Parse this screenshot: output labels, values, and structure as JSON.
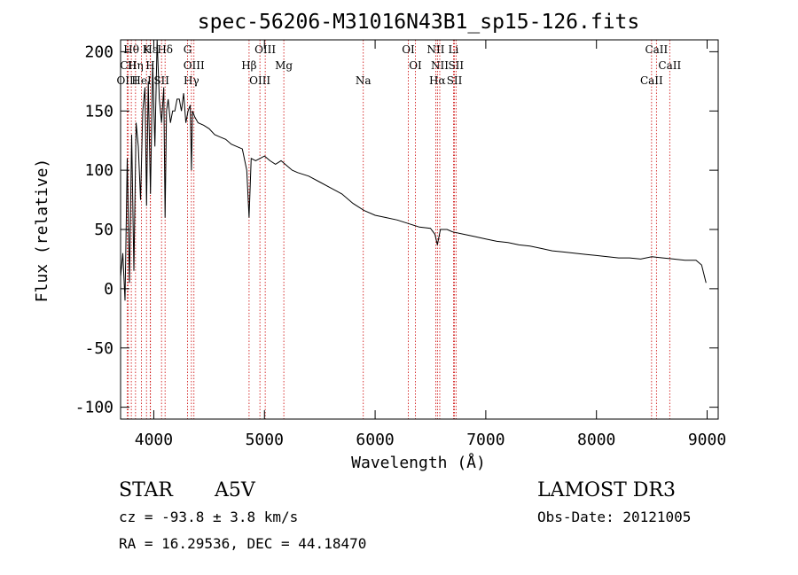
{
  "chart_data": {
    "type": "line",
    "title": "spec-56206-M31016N43B1_sp15-126.fits",
    "xlabel": "Wavelength (Å)",
    "ylabel": "Flux (relative)",
    "xlim": [
      3700,
      9100
    ],
    "ylim": [
      -110,
      210
    ],
    "xticks": [
      4000,
      5000,
      6000,
      7000,
      8000,
      9000
    ],
    "yticks": [
      -100,
      -50,
      0,
      50,
      100,
      150,
      200
    ],
    "series": [
      {
        "name": "spectrum",
        "x": [
          3700,
          3720,
          3740,
          3760,
          3780,
          3800,
          3820,
          3840,
          3860,
          3880,
          3900,
          3920,
          3935,
          3950,
          3970,
          3990,
          4010,
          4030,
          4050,
          4070,
          4090,
          4102,
          4115,
          4130,
          4150,
          4170,
          4190,
          4210,
          4230,
          4250,
          4270,
          4290,
          4310,
          4330,
          4340,
          4350,
          4370,
          4400,
          4450,
          4500,
          4550,
          4600,
          4650,
          4700,
          4750,
          4800,
          4840,
          4861,
          4880,
          4920,
          4960,
          5000,
          5050,
          5100,
          5150,
          5200,
          5250,
          5300,
          5400,
          5500,
          5600,
          5700,
          5800,
          5900,
          6000,
          6100,
          6200,
          6300,
          6400,
          6500,
          6540,
          6563,
          6590,
          6650,
          6700,
          6800,
          6900,
          7000,
          7100,
          7200,
          7300,
          7400,
          7500,
          7600,
          7700,
          7800,
          7900,
          8000,
          8100,
          8200,
          8300,
          8400,
          8500,
          8600,
          8700,
          8800,
          8900,
          8950,
          8990
        ],
        "values": [
          10,
          30,
          -10,
          110,
          5,
          130,
          15,
          140,
          120,
          75,
          150,
          170,
          70,
          175,
          80,
          190,
          120,
          210,
          160,
          140,
          170,
          60,
          150,
          160,
          140,
          150,
          150,
          160,
          160,
          150,
          165,
          140,
          150,
          155,
          100,
          150,
          145,
          140,
          138,
          135,
          130,
          128,
          126,
          122,
          120,
          118,
          100,
          60,
          110,
          108,
          110,
          112,
          108,
          105,
          108,
          104,
          100,
          98,
          95,
          90,
          85,
          80,
          72,
          66,
          62,
          60,
          58,
          55,
          52,
          51,
          46,
          37,
          50,
          50,
          48,
          46,
          44,
          42,
          40,
          39,
          37,
          36,
          34,
          32,
          31,
          30,
          29,
          28,
          27,
          26,
          26,
          25,
          27,
          26,
          25,
          24,
          24,
          20,
          5
        ]
      }
    ],
    "lines": [
      {
        "label": "Hθ",
        "x": 3797
      },
      {
        "label": "CII",
        "x": 3770
      },
      {
        "label": "OIII",
        "x": 3760
      },
      {
        "label": "K",
        "x": 3934
      },
      {
        "label": "H",
        "x": 3968
      },
      {
        "label": "HeI",
        "x": 3889
      },
      {
        "label": "Hε",
        "x": 3970
      },
      {
        "label": "Hη",
        "x": 3835
      },
      {
        "label": "SII",
        "x": 4070
      },
      {
        "label": "Hδ",
        "x": 4102
      },
      {
        "label": "OIII",
        "x": 4363
      },
      {
        "label": "Hγ",
        "x": 4340
      },
      {
        "label": "G",
        "x": 4305
      },
      {
        "label": "Hβ",
        "x": 4861
      },
      {
        "label": "OIII",
        "x": 4959
      },
      {
        "label": "OIII",
        "x": 5007
      },
      {
        "label": "Mg",
        "x": 5175
      },
      {
        "label": "Na",
        "x": 5893
      },
      {
        "label": "OI",
        "x": 6300
      },
      {
        "label": "OI",
        "x": 6364
      },
      {
        "label": "Hα",
        "x": 6563
      },
      {
        "label": "NII",
        "x": 6548
      },
      {
        "label": "NII",
        "x": 6584
      },
      {
        "label": "SII",
        "x": 6717
      },
      {
        "label": "Li",
        "x": 6708
      },
      {
        "label": "SII",
        "x": 6731
      },
      {
        "label": "CaII",
        "x": 8498
      },
      {
        "label": "CaII",
        "x": 8542
      },
      {
        "label": "CaII",
        "x": 8662
      }
    ]
  },
  "info": {
    "object_class": "STAR",
    "subclass": "A5V",
    "survey": "LAMOST DR3",
    "cz": "cz = -93.8 ± 3.8 km/s",
    "obs_date": "Obs-Date: 20121005",
    "coords": "RA =  16.29536, DEC =  44.18470"
  }
}
